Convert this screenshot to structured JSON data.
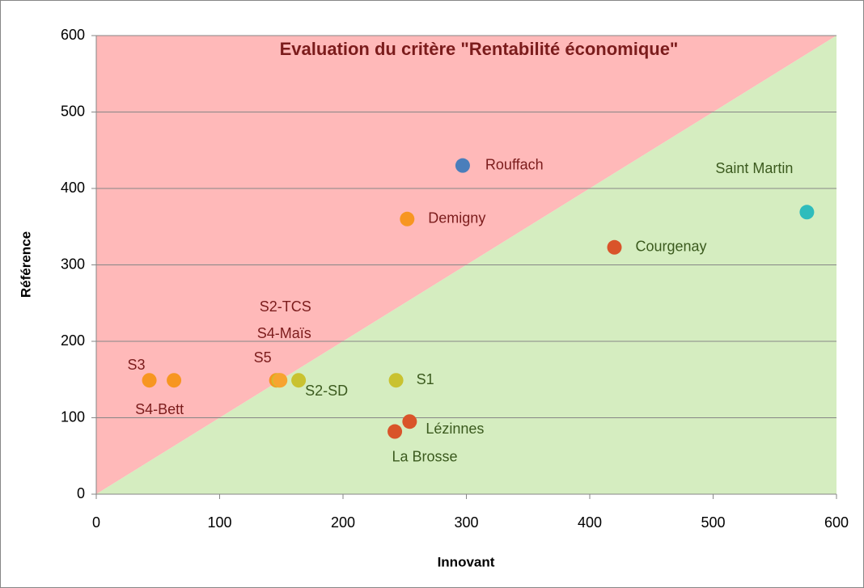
{
  "chart_data": {
    "type": "scatter",
    "title": "Evaluation du critère \"Rentabilité économique\"",
    "x_label": "Innovant",
    "y_label": "Référence",
    "xlim": [
      0,
      600
    ],
    "ylim": [
      0,
      600
    ],
    "xticks": [
      0,
      100,
      200,
      300,
      400,
      500,
      600
    ],
    "yticks": [
      0,
      100,
      200,
      300,
      400,
      500,
      600
    ],
    "grid": true,
    "series": [
      {
        "name": "Rouffach",
        "color": "#4a7ebb",
        "x": [
          297
        ],
        "values": [
          430
        ]
      },
      {
        "name": "Demigny",
        "color": "#f79621",
        "x": [
          252
        ],
        "values": [
          360
        ]
      },
      {
        "name": "Saint Martin",
        "color": "#2fbcbc",
        "x": [
          576
        ],
        "values": [
          369
        ]
      },
      {
        "name": "Courgenay",
        "color": "#d9542a",
        "x": [
          420
        ],
        "values": [
          323
        ]
      },
      {
        "name": "S3",
        "color": "#f79621",
        "x": [
          43
        ],
        "values": [
          149
        ]
      },
      {
        "name": "S4-Bett",
        "color": "#f79621",
        "x": [
          63
        ],
        "values": [
          149
        ]
      },
      {
        "name": "S5",
        "color": "#f79621",
        "x": [
          146
        ],
        "values": [
          149
        ]
      },
      {
        "name": "S2-TCS",
        "color": "#c9c230",
        "x": [
          148
        ],
        "values": [
          149
        ]
      },
      {
        "name": "S4-Maïs",
        "color": "#f7a430",
        "x": [
          149
        ],
        "values": [
          149
        ]
      },
      {
        "name": "S2-SD",
        "color": "#c9c230",
        "x": [
          164
        ],
        "values": [
          149
        ]
      },
      {
        "name": "S1",
        "color": "#c9c230",
        "x": [
          243
        ],
        "values": [
          149
        ]
      },
      {
        "name": "Lézinnes",
        "color": "#d9542a",
        "x": [
          254
        ],
        "values": [
          95
        ]
      },
      {
        "name": "La Brosse",
        "color": "#d9542a",
        "x": [
          242
        ],
        "values": [
          82
        ]
      }
    ]
  }
}
